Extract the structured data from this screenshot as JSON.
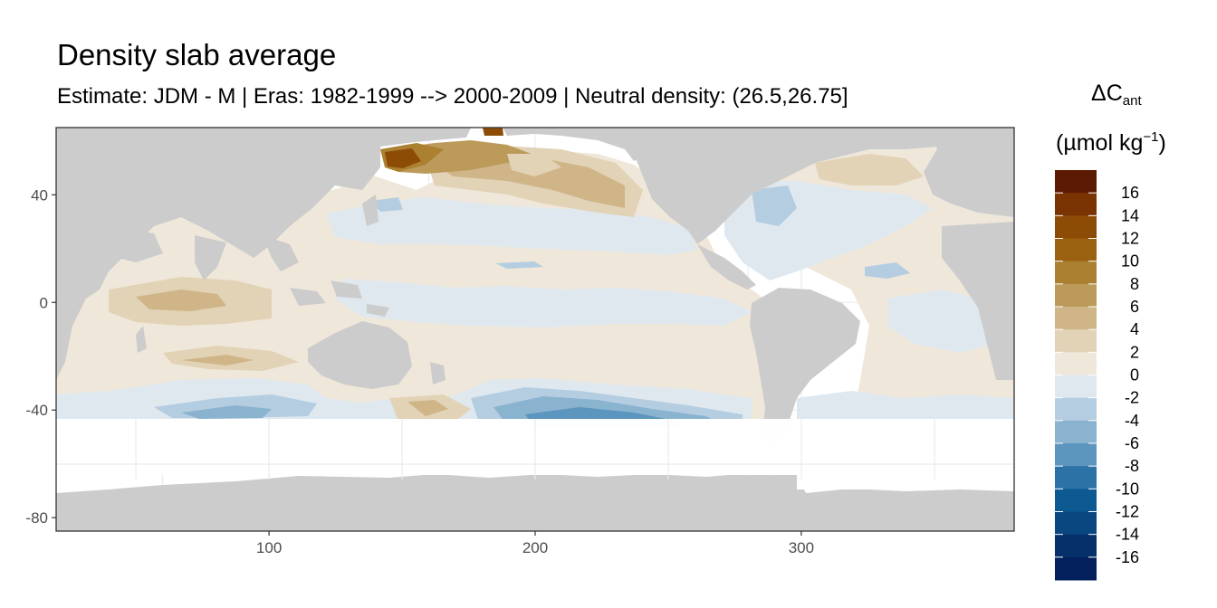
{
  "title": "Density slab average",
  "subtitle": "Estimate: JDM - M | Eras: 1982-1999 --> 2000-2009 | Neutral density: (26.5,26.75]",
  "chart_data": {
    "type": "heatmap",
    "title": "Density slab average",
    "subtitle": "Estimate: JDM - M | Eras: 1982-1999 --> 2000-2009 | Neutral density: (26.5,26.75]",
    "xlabel": "",
    "ylabel": "",
    "xlim": [
      20,
      380
    ],
    "ylim": [
      -85,
      65
    ],
    "x_ticks": [
      100,
      200,
      300
    ],
    "y_ticks": [
      40,
      0,
      -40,
      -80
    ],
    "grid": true,
    "legend": {
      "position": "right",
      "title_main": "ΔC",
      "title_sub": "ant",
      "unit_prefix": "(µmol kg",
      "unit_sup": "−1",
      "unit_suffix": ")",
      "labels": [
        "16",
        "14",
        "12",
        "10",
        "8",
        "6",
        "4",
        "2",
        "0",
        "-2",
        "-4",
        "-6",
        "-8",
        "-10",
        "-12",
        "-14",
        "-16"
      ],
      "colors": [
        "#5c1a02",
        "#7a3303",
        "#8d4c06",
        "#9a6210",
        "#ab8031",
        "#bc9a5a",
        "#cfb588",
        "#e2d3b6",
        "#efe7da",
        "#dfe8ef",
        "#b5cde0",
        "#8ab3d0",
        "#5c95bd",
        "#2d72a7",
        "#0d5a93",
        "#0a4680",
        "#06306a",
        "#031f5c"
      ]
    },
    "land_color": "#cccccc",
    "values_summary": {
      "north_pacific_max_region": "Kuril / Bering (~140-185 E, 45-60 N)",
      "north_pacific_max": 14,
      "southern_ocean_min_region": "South Pacific (~190-260 E, 40-45 S)",
      "southern_ocean_min": -8,
      "background": 0
    }
  }
}
